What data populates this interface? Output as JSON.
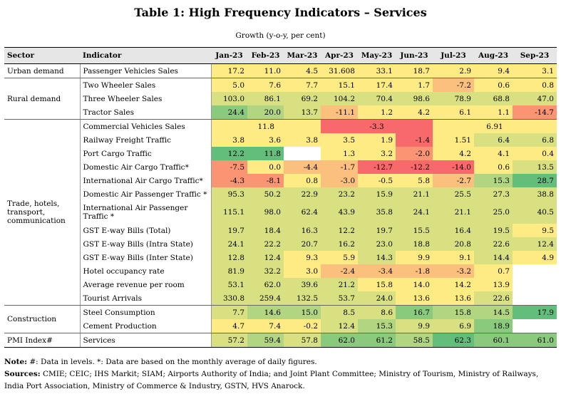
{
  "title": "Table 1: High Frequency Indicators – Services",
  "subtitle": "Growth (y-o-y, per cent)",
  "headers": [
    "Sector",
    "Indicator",
    "Jan-23",
    "Feb-23",
    "Mar-23",
    "Apr-23",
    "May-23",
    "Jun-23",
    "Jul-23",
    "Aug-23",
    "Sep-23"
  ],
  "sectors": {
    "urban": "Urban demand",
    "rural": "Rural demand",
    "trade": "Trade, hotels, transport, communication",
    "construction": "Construction",
    "pmi": "PMI Index#"
  },
  "rows": [
    {
      "indicator": "Passenger Vehicles Sales",
      "values": [
        "17.2",
        "11.0",
        "4.5",
        "31.608",
        "33.1",
        "18.7",
        "2.9",
        "9.4",
        "3.1"
      ]
    },
    {
      "indicator": "Two Wheeler Sales",
      "values": [
        "5.0",
        "7.6",
        "7.7",
        "15.1",
        "17.4",
        "1.7",
        "-7.2",
        "0.6",
        "0.8"
      ]
    },
    {
      "indicator": "Three Wheeler Sales",
      "values": [
        "103.0",
        "86.1",
        "69.2",
        "104.2",
        "70.4",
        "98.6",
        "78.9",
        "68.8",
        "47.0"
      ]
    },
    {
      "indicator": "Tractor Sales",
      "values": [
        "24.4",
        "20.0",
        "13.7",
        "-11.1",
        "1.2",
        "4.2",
        "6.1",
        "1.1",
        "-14.7"
      ]
    },
    {
      "indicator": "Commercial Vehicles Sales",
      "values": [
        "11.8",
        "-3.3",
        "6.91"
      ]
    },
    {
      "indicator": "Railway Freight Traffic",
      "values": [
        "3.8",
        "3.6",
        "3.8",
        "3.5",
        "1.9",
        "-1.4",
        "1.51",
        "6.4",
        "6.8"
      ]
    },
    {
      "indicator": "Port Cargo Traffic",
      "values": [
        "12.2",
        "11.8",
        "",
        "1.3",
        "3.2",
        "-2.0",
        "4.2",
        "4.1",
        "0.4"
      ]
    },
    {
      "indicator": "Domestic Air Cargo Traffic*",
      "values": [
        "-7.5",
        "0.0",
        "-4.4",
        "-1.7",
        "-12.7",
        "-12.2",
        "-14.0",
        "0.6",
        "13.5"
      ]
    },
    {
      "indicator": "International Air Cargo Traffic*",
      "values": [
        "-4.3",
        "-8.1",
        "0.8",
        "-3.0",
        "-0.5",
        "5.8",
        "-2.7",
        "15.3",
        "28.7"
      ]
    },
    {
      "indicator": "Domestic Air Passenger Traffic *",
      "values": [
        "95.3",
        "50.2",
        "22.9",
        "23.2",
        "15.9",
        "21.1",
        "25.5",
        "27.3",
        "38.8"
      ]
    },
    {
      "indicator": "International Air Passenger Traffic *",
      "values": [
        "115.1",
        "98.0",
        "62.4",
        "43.9",
        "35.8",
        "24.1",
        "21.1",
        "25.0",
        "40.5"
      ]
    },
    {
      "indicator": "GST E-way Bills (Total)",
      "values": [
        "19.7",
        "18.4",
        "16.3",
        "12.2",
        "19.7",
        "15.5",
        "16.4",
        "19.5",
        "9.5"
      ]
    },
    {
      "indicator": "GST E-way Bills (Intra State)",
      "values": [
        "24.1",
        "22.2",
        "20.7",
        "16.2",
        "23.0",
        "18.8",
        "20.8",
        "22.6",
        "12.4"
      ]
    },
    {
      "indicator": "GST E-way Bills (Inter State)",
      "values": [
        "12.8",
        "12.4",
        "9.3",
        "5.9",
        "14.3",
        "9.9",
        "9.1",
        "14.4",
        "4.9"
      ]
    },
    {
      "indicator": "Hotel occupancy rate",
      "values": [
        "81.9",
        "32.2",
        "3.0",
        "-2.4",
        "-3.4",
        "-1.8",
        "-3.2",
        "0.7",
        ""
      ]
    },
    {
      "indicator": "Average revenue per room",
      "values": [
        "53.1",
        "62.0",
        "39.6",
        "21.2",
        "15.8",
        "14.0",
        "14.2",
        "13.9",
        ""
      ]
    },
    {
      "indicator": "Tourist Arrivals",
      "values": [
        "330.8",
        "259.4",
        "132.5",
        "53.7",
        "24.0",
        "13.6",
        "13.6",
        "22.6",
        ""
      ]
    },
    {
      "indicator": "Steel Consumption",
      "values": [
        "7.7",
        "14.6",
        "15.0",
        "8.5",
        "8.6",
        "16.7",
        "15.8",
        "14.5",
        "17.9"
      ]
    },
    {
      "indicator": "Cement Production",
      "values": [
        "4.7",
        "7.4",
        "-0.2",
        "12.4",
        "15.3",
        "9.9",
        "6.9",
        "18.9",
        ""
      ]
    },
    {
      "indicator": "Services",
      "values": [
        "57.2",
        "59.4",
        "57.8",
        "62.0",
        "61.2",
        "58.5",
        "62.3",
        "60.1",
        "61.0"
      ]
    }
  ],
  "colors": {
    "header_bg": "#e6e6e6",
    "palette": [
      "#f8696b",
      "#fa9473",
      "#fbc07d",
      "#ffeb84",
      "#d8e082",
      "#b1d580",
      "#8aca7d",
      "#63be7b"
    ]
  },
  "notes": {
    "note_label": "Note:",
    "note_text": " #: Data in levels. *: Data are based on the monthly average of daily figures.",
    "sources_label": "Sources:",
    "sources_text": " CMIE; CEIC; IHS Markit; SIAM; Airports Authority of India; and Joint Plant Committee; Ministry of Tourism, Ministry of Railways, India Port Association, Ministry of Commerce & Industry, GSTN, HVS Anarock."
  }
}
